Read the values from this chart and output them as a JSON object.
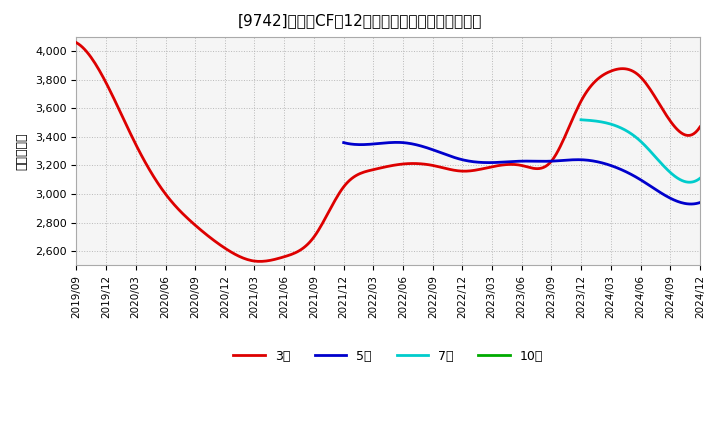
{
  "title": "[9742]　営業CFの12か月移動合計の平均値の推移",
  "ylabel": "（百万円）",
  "background_color": "#ffffff",
  "grid_color": "#aaaaaa",
  "plot_bg_color": "#f5f5f5",
  "ylim": [
    2500,
    4100
  ],
  "yticks": [
    2600,
    2800,
    3000,
    3200,
    3400,
    3600,
    3800,
    4000
  ],
  "series": {
    "3年": {
      "color": "#dd0000",
      "dates": [
        "2019-09",
        "2019-12",
        "2020-03",
        "2020-06",
        "2020-09",
        "2020-12",
        "2021-03",
        "2021-06",
        "2021-09",
        "2021-12",
        "2022-03",
        "2022-06",
        "2022-09",
        "2022-12",
        "2023-03",
        "2023-06",
        "2023-09",
        "2023-12",
        "2024-03",
        "2024-06",
        "2024-09",
        "2024-12"
      ],
      "values": [
        4060,
        3780,
        3350,
        3000,
        2780,
        2620,
        2530,
        2560,
        2700,
        3050,
        3170,
        3210,
        3200,
        3160,
        3190,
        3200,
        3230,
        3650,
        3860,
        3820,
        3510,
        3470
      ]
    },
    "5年": {
      "color": "#0000cc",
      "dates": [
        "2021-12",
        "2022-03",
        "2022-06",
        "2022-09",
        "2022-12",
        "2023-03",
        "2023-06",
        "2023-09",
        "2023-12",
        "2024-03",
        "2024-06",
        "2024-09",
        "2024-12"
      ],
      "values": [
        3360,
        3350,
        3360,
        3310,
        3240,
        3220,
        3230,
        3230,
        3240,
        3200,
        3100,
        2970,
        2940
      ]
    },
    "7年": {
      "color": "#00cccc",
      "dates": [
        "2023-12",
        "2024-03",
        "2024-06",
        "2024-09",
        "2024-12"
      ],
      "values": [
        3520,
        3490,
        3370,
        3150,
        3110
      ]
    },
    "10年": {
      "color": "#00aa00",
      "dates": [],
      "values": []
    }
  },
  "legend": {
    "entries": [
      "3年",
      "5年",
      "7年",
      "10年"
    ],
    "colors": [
      "#dd0000",
      "#0000cc",
      "#00cccc",
      "#00aa00"
    ],
    "loc": "lower center",
    "ncol": 4
  },
  "xmin": "2019-09",
  "xmax": "2024-12"
}
